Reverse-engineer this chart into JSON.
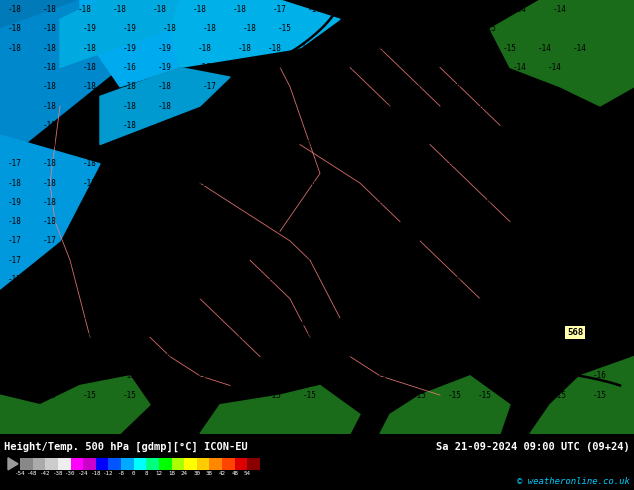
{
  "title_left": "Height/Temp. 500 hPa [gdmp][°C] ICON-EU",
  "title_right": "Sa 21-09-2024 09:00 UTC (09+24)",
  "copyright": "© weatheronline.co.uk",
  "fig_width": 6.34,
  "fig_height": 4.9,
  "dpi": 100,
  "bg_cyan": "#00e5ff",
  "bg_dark_blue": "#009dcc",
  "bg_medium_blue": "#00b8e6",
  "land_dark_green": "#1a6b1a",
  "land_medium_green": "#2d8b2d",
  "border_color": "#ff8080",
  "contour_color": "#000000",
  "text_color_ocean": "#000000",
  "text_color_land": "#003300",
  "bottom_bg": "#000000",
  "bottom_text": "#ffffff",
  "cb_arrow_color": "#888888",
  "label_568_bg": "#ffffaa",
  "colorbar_colors": [
    "#888888",
    "#aaaaaa",
    "#cccccc",
    "#eeeeee",
    "#ff00ff",
    "#cc00cc",
    "#0000ff",
    "#0055ff",
    "#00aaff",
    "#00ffff",
    "#00ff80",
    "#00ff00",
    "#aaff00",
    "#ffff00",
    "#ffcc00",
    "#ff8800",
    "#ff4400",
    "#dd0000",
    "#880000"
  ],
  "colorbar_tick_labels": [
    "-54",
    "-48",
    "-42",
    "-38",
    "-30",
    "-24",
    "-18",
    "-12",
    "-8",
    "0",
    "8",
    "12",
    "18",
    "24",
    "30",
    "38",
    "42",
    "48",
    "54"
  ]
}
